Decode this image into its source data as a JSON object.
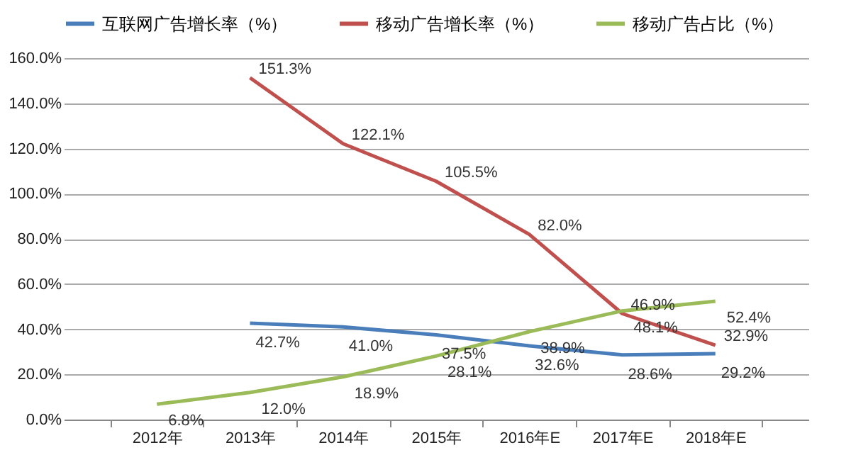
{
  "chart_data": {
    "type": "line",
    "categories": [
      "2012年",
      "2013年",
      "2014年",
      "2015年",
      "2016年E",
      "2017年E",
      "2018年E"
    ],
    "series": [
      {
        "name": "互联网广告增长率（%）",
        "color": "#4a7ebb",
        "values": [
          null,
          42.7,
          41.0,
          37.5,
          32.6,
          28.6,
          29.2
        ],
        "value_labels": [
          null,
          "42.7%",
          "41.0%",
          "37.5%",
          "32.6%",
          "28.6%",
          "29.2%"
        ]
      },
      {
        "name": "移动广告增长率（%）",
        "color": "#c0504d",
        "values": [
          null,
          151.3,
          122.1,
          105.5,
          82.0,
          46.9,
          32.9
        ],
        "value_labels": [
          null,
          "151.3%",
          "122.1%",
          "105.5%",
          "82.0%",
          "46.9%",
          "32.9%"
        ]
      },
      {
        "name": "移动广告占比（%）",
        "color": "#9bbb59",
        "values": [
          6.8,
          12.0,
          18.9,
          28.1,
          38.9,
          48.1,
          52.4
        ],
        "value_labels": [
          "6.8%",
          "12.0%",
          "18.9%",
          "28.1%",
          "38.9%",
          "48.1%",
          "52.4%"
        ]
      }
    ],
    "ylim": [
      0,
      160
    ],
    "yticks": [
      {
        "value": 0,
        "label": "0.0%"
      },
      {
        "value": 20,
        "label": "20.0%"
      },
      {
        "value": 40,
        "label": "40.0%"
      },
      {
        "value": 60,
        "label": "60.0%"
      },
      {
        "value": 80,
        "label": "80.0%"
      },
      {
        "value": 100,
        "label": "100.0%"
      },
      {
        "value": 120,
        "label": "120.0%"
      },
      {
        "value": 140,
        "label": "140.0%"
      },
      {
        "value": 160,
        "label": "160.0%"
      }
    ],
    "grid": "y",
    "legend": "top",
    "marker": "none",
    "line_style": "solid"
  }
}
